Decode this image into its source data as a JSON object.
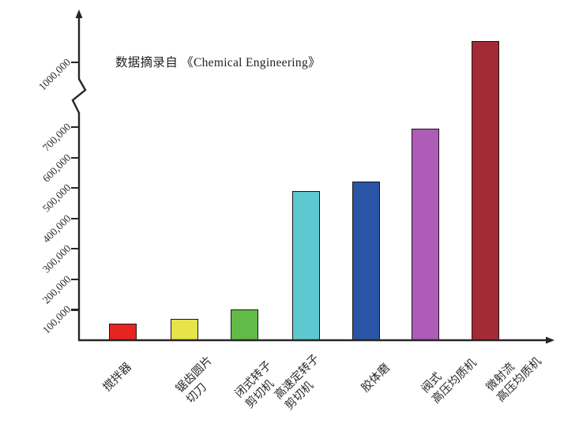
{
  "chart_data": {
    "type": "bar",
    "title": "",
    "annotation": "数据摘录自 《Chemical Engineering》",
    "xlabel": "",
    "ylabel": "",
    "grid": false,
    "legend": null,
    "ylim": [
      0,
      1150000
    ],
    "axis_break": {
      "between": [
        700000,
        1000000
      ]
    },
    "axis_color": "#262626",
    "categories": [
      "搅拌器",
      "锯齿圆片切刀",
      "闭式转子剪切机",
      "高速定转子剪切机",
      "胶体磨",
      "阀式高压均质机",
      "微射流高压均质机"
    ],
    "values": [
      55000,
      70000,
      100000,
      490000,
      520000,
      695000,
      1100000
    ],
    "bars": [
      {
        "label_lines": [
          "搅拌器"
        ],
        "value": 55000,
        "color": "#e82420"
      },
      {
        "label_lines": [
          "锯齿圆片",
          "切刀"
        ],
        "value": 70000,
        "color": "#e6e44a"
      },
      {
        "label_lines": [
          "闭式转子",
          "剪切机"
        ],
        "value": 100000,
        "color": "#61bb46"
      },
      {
        "label_lines": [
          "高速定转子",
          "剪切机"
        ],
        "value": 490000,
        "color": "#5ec8d0"
      },
      {
        "label_lines": [
          "胶体磨"
        ],
        "value": 520000,
        "color": "#2a54a6"
      },
      {
        "label_lines": [
          "阀式",
          "高压均质机"
        ],
        "value": 695000,
        "color": "#ae5cb8"
      },
      {
        "label_lines": [
          "微射流",
          "高压均质机"
        ],
        "value": 1100000,
        "color": "#a32b36"
      }
    ],
    "yticks": [
      {
        "label": "100,000",
        "value": 100000
      },
      {
        "label": "200,000",
        "value": 200000
      },
      {
        "label": "300,000",
        "value": 300000
      },
      {
        "label": "400,000",
        "value": 400000
      },
      {
        "label": "500,000",
        "value": 500000
      },
      {
        "label": "600,000",
        "value": 600000
      },
      {
        "label": "700,000",
        "value": 700000
      },
      {
        "label": "1000,000",
        "value": 1000000
      }
    ]
  }
}
